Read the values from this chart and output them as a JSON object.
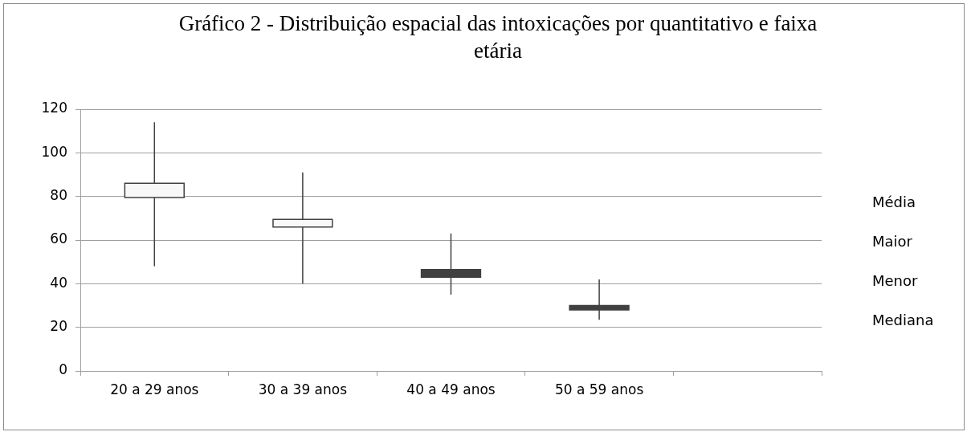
{
  "chart_data": {
    "type": "candlestick",
    "title": "Gráfico 2 - Distribuição espacial das intoxicações por quantitativo e faixa etária",
    "categories": [
      "20 a 29 anos",
      "30 a 39 anos",
      "40 a 49 anos",
      "50 a 59 anos",
      null
    ],
    "ohlc": [
      [
        79.5,
        114,
        48,
        86
      ],
      [
        66,
        91,
        40,
        69.5
      ],
      [
        46.5,
        63,
        35,
        43
      ],
      [
        30,
        42,
        23.5,
        28
      ],
      null
    ],
    "ylim": [
      0,
      120
    ],
    "yticks": [
      0,
      20,
      40,
      60,
      80,
      100,
      120
    ],
    "grid": "y",
    "annotations": [
      "Média",
      "Maior",
      "Menor",
      "Mediana"
    ]
  }
}
